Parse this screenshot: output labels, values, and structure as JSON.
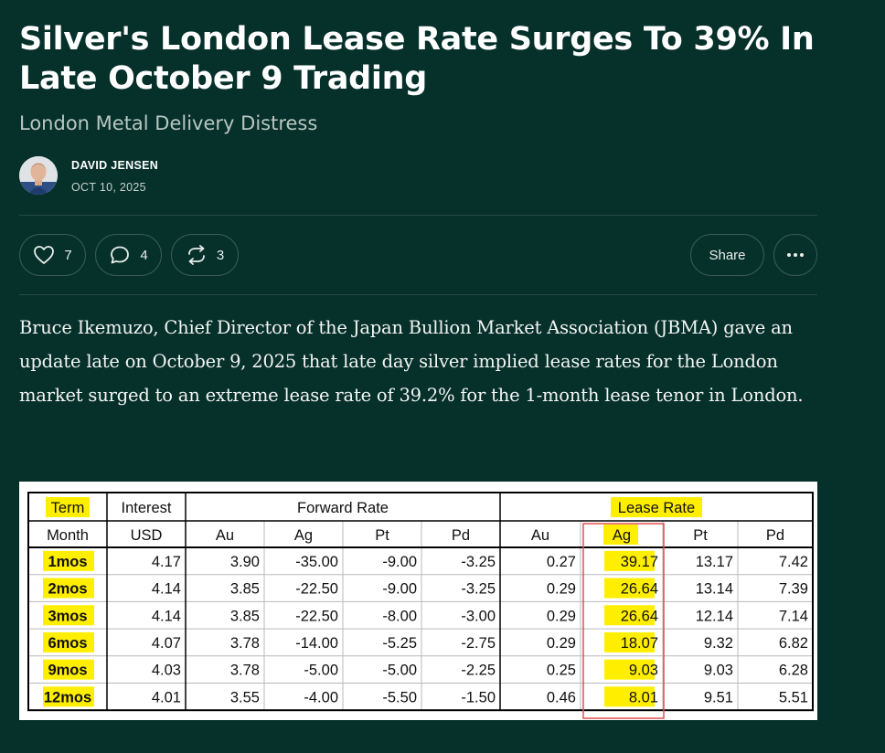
{
  "article": {
    "title": "Silver's London Lease Rate Surges To 39% In Late October 9 Trading",
    "subtitle": "London Metal Delivery Distress",
    "author": "DAVID JENSEN",
    "date": "OCT 10, 2025",
    "body": "Bruce Ikemuzo, Chief Director of the Japan Bullion Market Association (JBMA) gave an update late on October 9, 2025 that late day silver implied lease rates for the London market surged to an extreme lease rate of 39.2% for the 1-month lease tenor in London."
  },
  "actions": {
    "like": {
      "icon": "heart-icon",
      "count": "7"
    },
    "comment": {
      "icon": "comment-icon",
      "count": "4"
    },
    "restack": {
      "icon": "restack-icon",
      "count": "3"
    },
    "share_label": "Share",
    "more": {
      "icon": "more-icon"
    }
  },
  "colors": {
    "background": "#06302a",
    "highlight": "#ffee00",
    "box": "#e05050"
  },
  "table": {
    "header1": {
      "term": "Term",
      "interest": "Interest",
      "forward": "Forward Rate",
      "lease": "Lease Rate"
    },
    "header2": [
      "Month",
      "USD",
      "Au",
      "Ag",
      "Pt",
      "Pd",
      "Au",
      "Ag",
      "Pt",
      "Pd"
    ],
    "rows": [
      [
        "1mos",
        "4.17",
        "3.90",
        "-35.00",
        "-9.00",
        "-3.25",
        "0.27",
        "39.17",
        "13.17",
        "7.42"
      ],
      [
        "2mos",
        "4.14",
        "3.85",
        "-22.50",
        "-9.00",
        "-3.25",
        "0.29",
        "26.64",
        "13.14",
        "7.39"
      ],
      [
        "3mos",
        "4.14",
        "3.85",
        "-22.50",
        "-8.00",
        "-3.00",
        "0.29",
        "26.64",
        "12.14",
        "7.14"
      ],
      [
        "6mos",
        "4.07",
        "3.78",
        "-14.00",
        "-5.25",
        "-2.75",
        "0.29",
        "18.07",
        "9.32",
        "6.82"
      ],
      [
        "9mos",
        "4.03",
        "3.78",
        "-5.00",
        "-5.00",
        "-2.25",
        "0.25",
        "9.03",
        "9.03",
        "6.28"
      ],
      [
        "12mos",
        "4.01",
        "3.55",
        "-4.00",
        "-5.50",
        "-1.50",
        "0.46",
        "8.01",
        "9.51",
        "5.51"
      ]
    ]
  }
}
